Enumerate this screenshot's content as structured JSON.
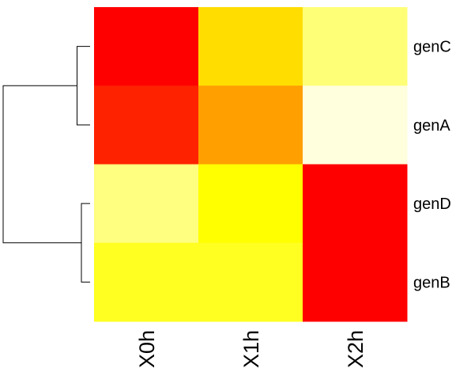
{
  "chart_data": {
    "type": "heatmap",
    "title": "",
    "xlabel": "",
    "ylabel": "",
    "columns": [
      "X0h",
      "X1h",
      "X2h"
    ],
    "rows": [
      "genC",
      "genA",
      "genD",
      "genB"
    ],
    "cell_colors": [
      [
        "#ff0000",
        "#ffdd00",
        "#ffff77"
      ],
      [
        "#ff2200",
        "#ff9f00",
        "#ffffdd"
      ],
      [
        "#ffff80",
        "#ffff00",
        "#ff0000"
      ],
      [
        "#ffff22",
        "#ffff22",
        "#ff0000"
      ]
    ],
    "color_scale": [
      "#ff0000",
      "#ff8800",
      "#ffdd00",
      "#ffff00",
      "#ffffdd"
    ],
    "row_dendrogram": {
      "merges": [
        {
          "members": [
            "genC",
            "genA"
          ],
          "height": 0.15
        },
        {
          "members": [
            "genD",
            "genB"
          ],
          "height": 0.1
        },
        {
          "members": [
            "genC",
            "genA",
            "genD",
            "genB"
          ],
          "height": 1.0
        }
      ]
    },
    "legend": "none",
    "grid": false
  }
}
